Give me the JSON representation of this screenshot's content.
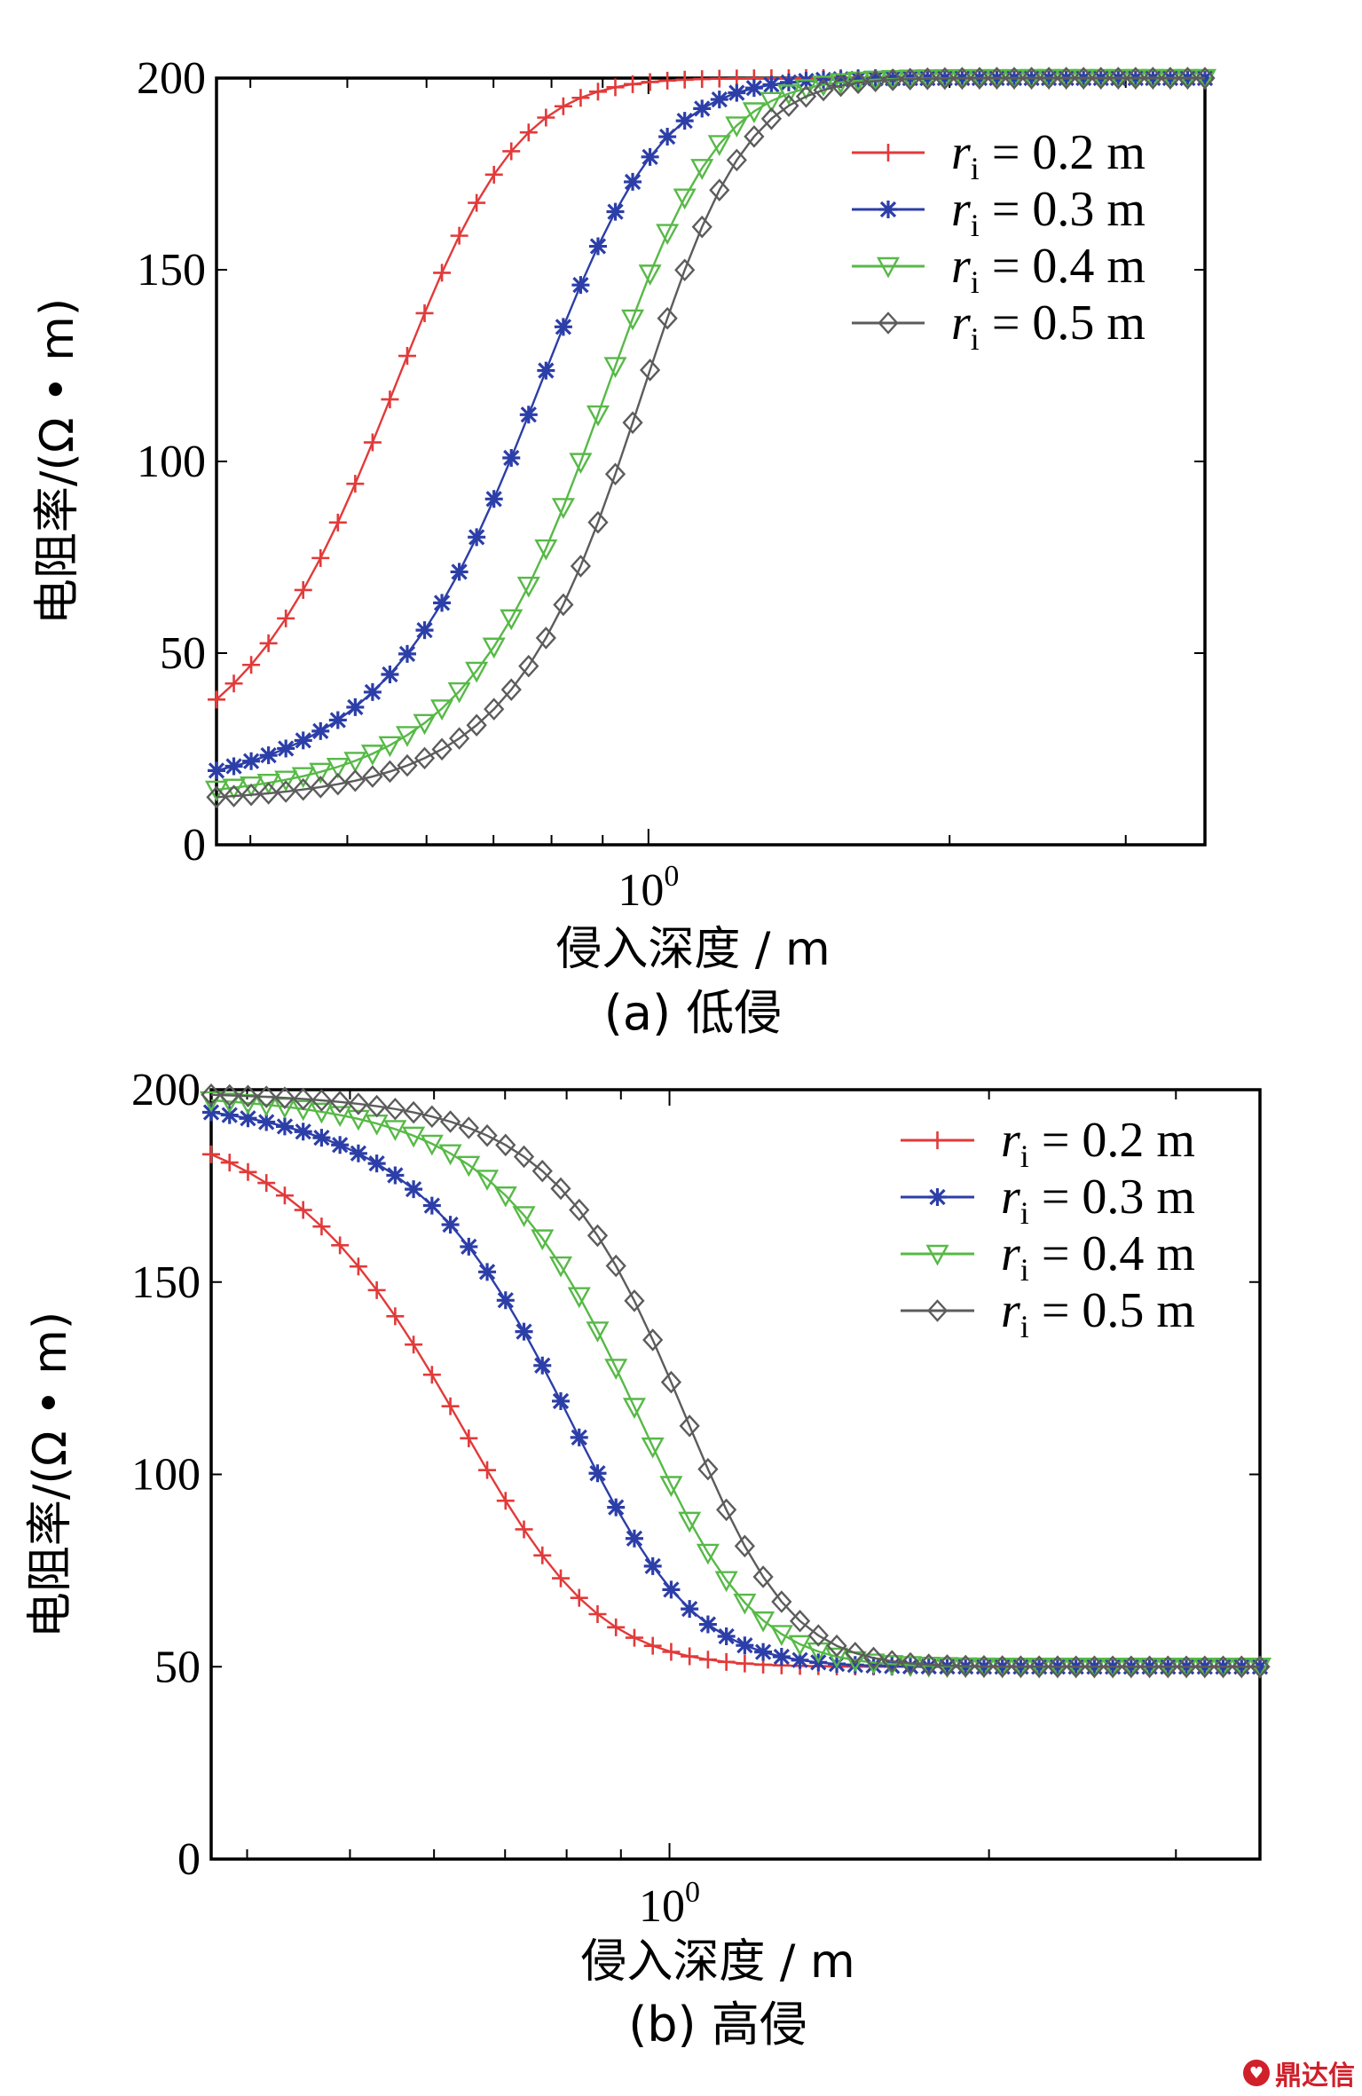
{
  "chart_data": [
    {
      "id": "a",
      "type": "line",
      "xscale": "log",
      "xlim": [
        0.37,
        3.6
      ],
      "ylim": [
        0,
        200
      ],
      "yticks": [
        0,
        50,
        100,
        150,
        200
      ],
      "xtick_label_base": "10",
      "xtick_label_exp": "0",
      "ylabel": "电阻率/(Ω • m)",
      "xlabel": "侵入深度 / m",
      "caption": "(a) 低侵",
      "legend_position": "top-right",
      "series": [
        {
          "name": "r_i = 0.2 m",
          "ri": "0.2",
          "color": "#e23a3a",
          "marker": "plus",
          "model": {
            "start": 10,
            "end": 200,
            "mid": 0.53,
            "k": 11
          }
        },
        {
          "name": "r_i = 0.3 m",
          "ri": "0.3",
          "color": "#2c3ea8",
          "marker": "star",
          "model": {
            "start": 10,
            "end": 200,
            "mid": 0.74,
            "k": 8
          }
        },
        {
          "name": "r_i = 0.4 m",
          "ri": "0.4",
          "color": "#57b947",
          "marker": "tri-down",
          "model": {
            "start": 10,
            "end": 200,
            "mid": 0.87,
            "k": 7.5
          }
        },
        {
          "name": "r_i = 0.5 m",
          "ri": "0.5",
          "color": "#5c5c5c",
          "marker": "diamond",
          "model": {
            "start": 10,
            "end": 200,
            "mid": 0.95,
            "k": 7.5
          }
        }
      ]
    },
    {
      "id": "b",
      "type": "line",
      "xscale": "log",
      "xlim": [
        0.37,
        3.6
      ],
      "ylim": [
        0,
        200
      ],
      "yticks": [
        0,
        50,
        100,
        150,
        200
      ],
      "xtick_label_base": "10",
      "xtick_label_exp": "0",
      "ylabel": "电阻率/(Ω • m)",
      "xlabel": "侵入深度 / m",
      "caption": "(b) 高侵",
      "legend_position": "top-right",
      "series": [
        {
          "name": "r_i = 0.2 m",
          "ri": "0.2",
          "color": "#e23a3a",
          "marker": "plus",
          "model": {
            "start": 200,
            "end": 50,
            "mid": 0.6,
            "k": 9
          }
        },
        {
          "name": "r_i = 0.3 m",
          "ri": "0.3",
          "color": "#2c3ea8",
          "marker": "star",
          "model": {
            "start": 200,
            "end": 50,
            "mid": 0.77,
            "k": 8
          }
        },
        {
          "name": "r_i = 0.4 m",
          "ri": "0.4",
          "color": "#57b947",
          "marker": "tri-down",
          "model": {
            "start": 200,
            "end": 50,
            "mid": 0.9,
            "k": 7.5
          }
        },
        {
          "name": "r_i = 0.5 m",
          "ri": "0.5",
          "color": "#5c5c5c",
          "marker": "diamond",
          "model": {
            "start": 200,
            "end": 50,
            "mid": 1.0,
            "k": 7.5
          }
        }
      ]
    }
  ],
  "legend_var": "r",
  "legend_sub": "i",
  "legend_unit": "m",
  "watermark": "鼎达信"
}
